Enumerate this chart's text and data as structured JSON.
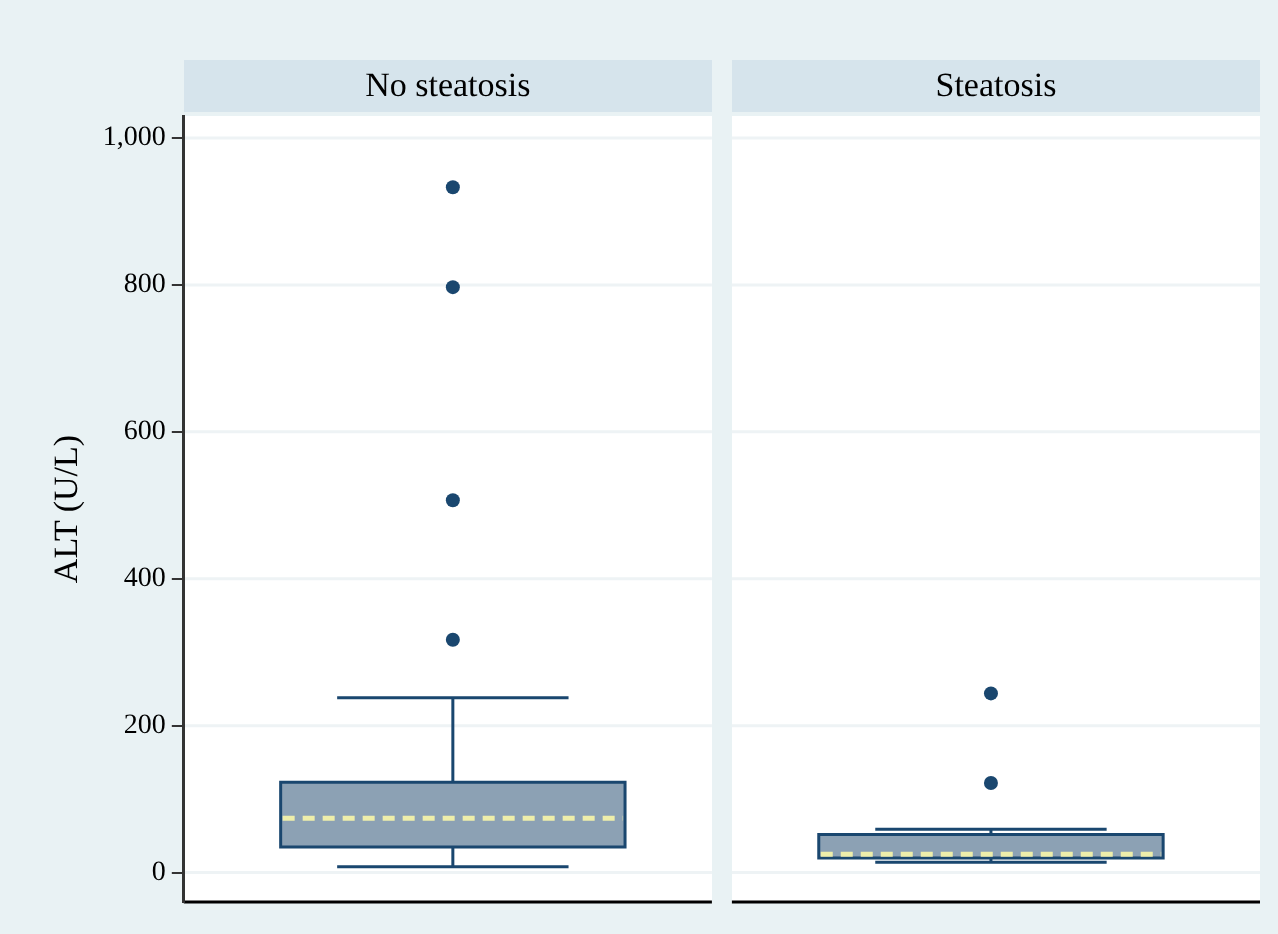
{
  "chart_data": {
    "type": "box",
    "categories": [
      "No steatosis",
      "Steatosis"
    ],
    "ylabel": "ALT (U/L)",
    "ylim": [
      -40,
      1030
    ],
    "yticks": [
      0,
      200,
      400,
      600,
      800,
      {
        "value": 1000,
        "label": "1,000"
      }
    ],
    "grid": "y",
    "legend": false,
    "series": [
      {
        "color": "#8ca1b4",
        "boxes": [
          {
            "low": 8,
            "q1": 35,
            "median": 74,
            "q3": 123,
            "high": 238,
            "outliers": [
              317,
              507,
              797,
              933
            ]
          },
          {
            "low": 14,
            "q1": 20,
            "median": 25,
            "q3": 52,
            "high": 59,
            "outliers": [
              122,
              244
            ]
          }
        ]
      }
    ]
  }
}
